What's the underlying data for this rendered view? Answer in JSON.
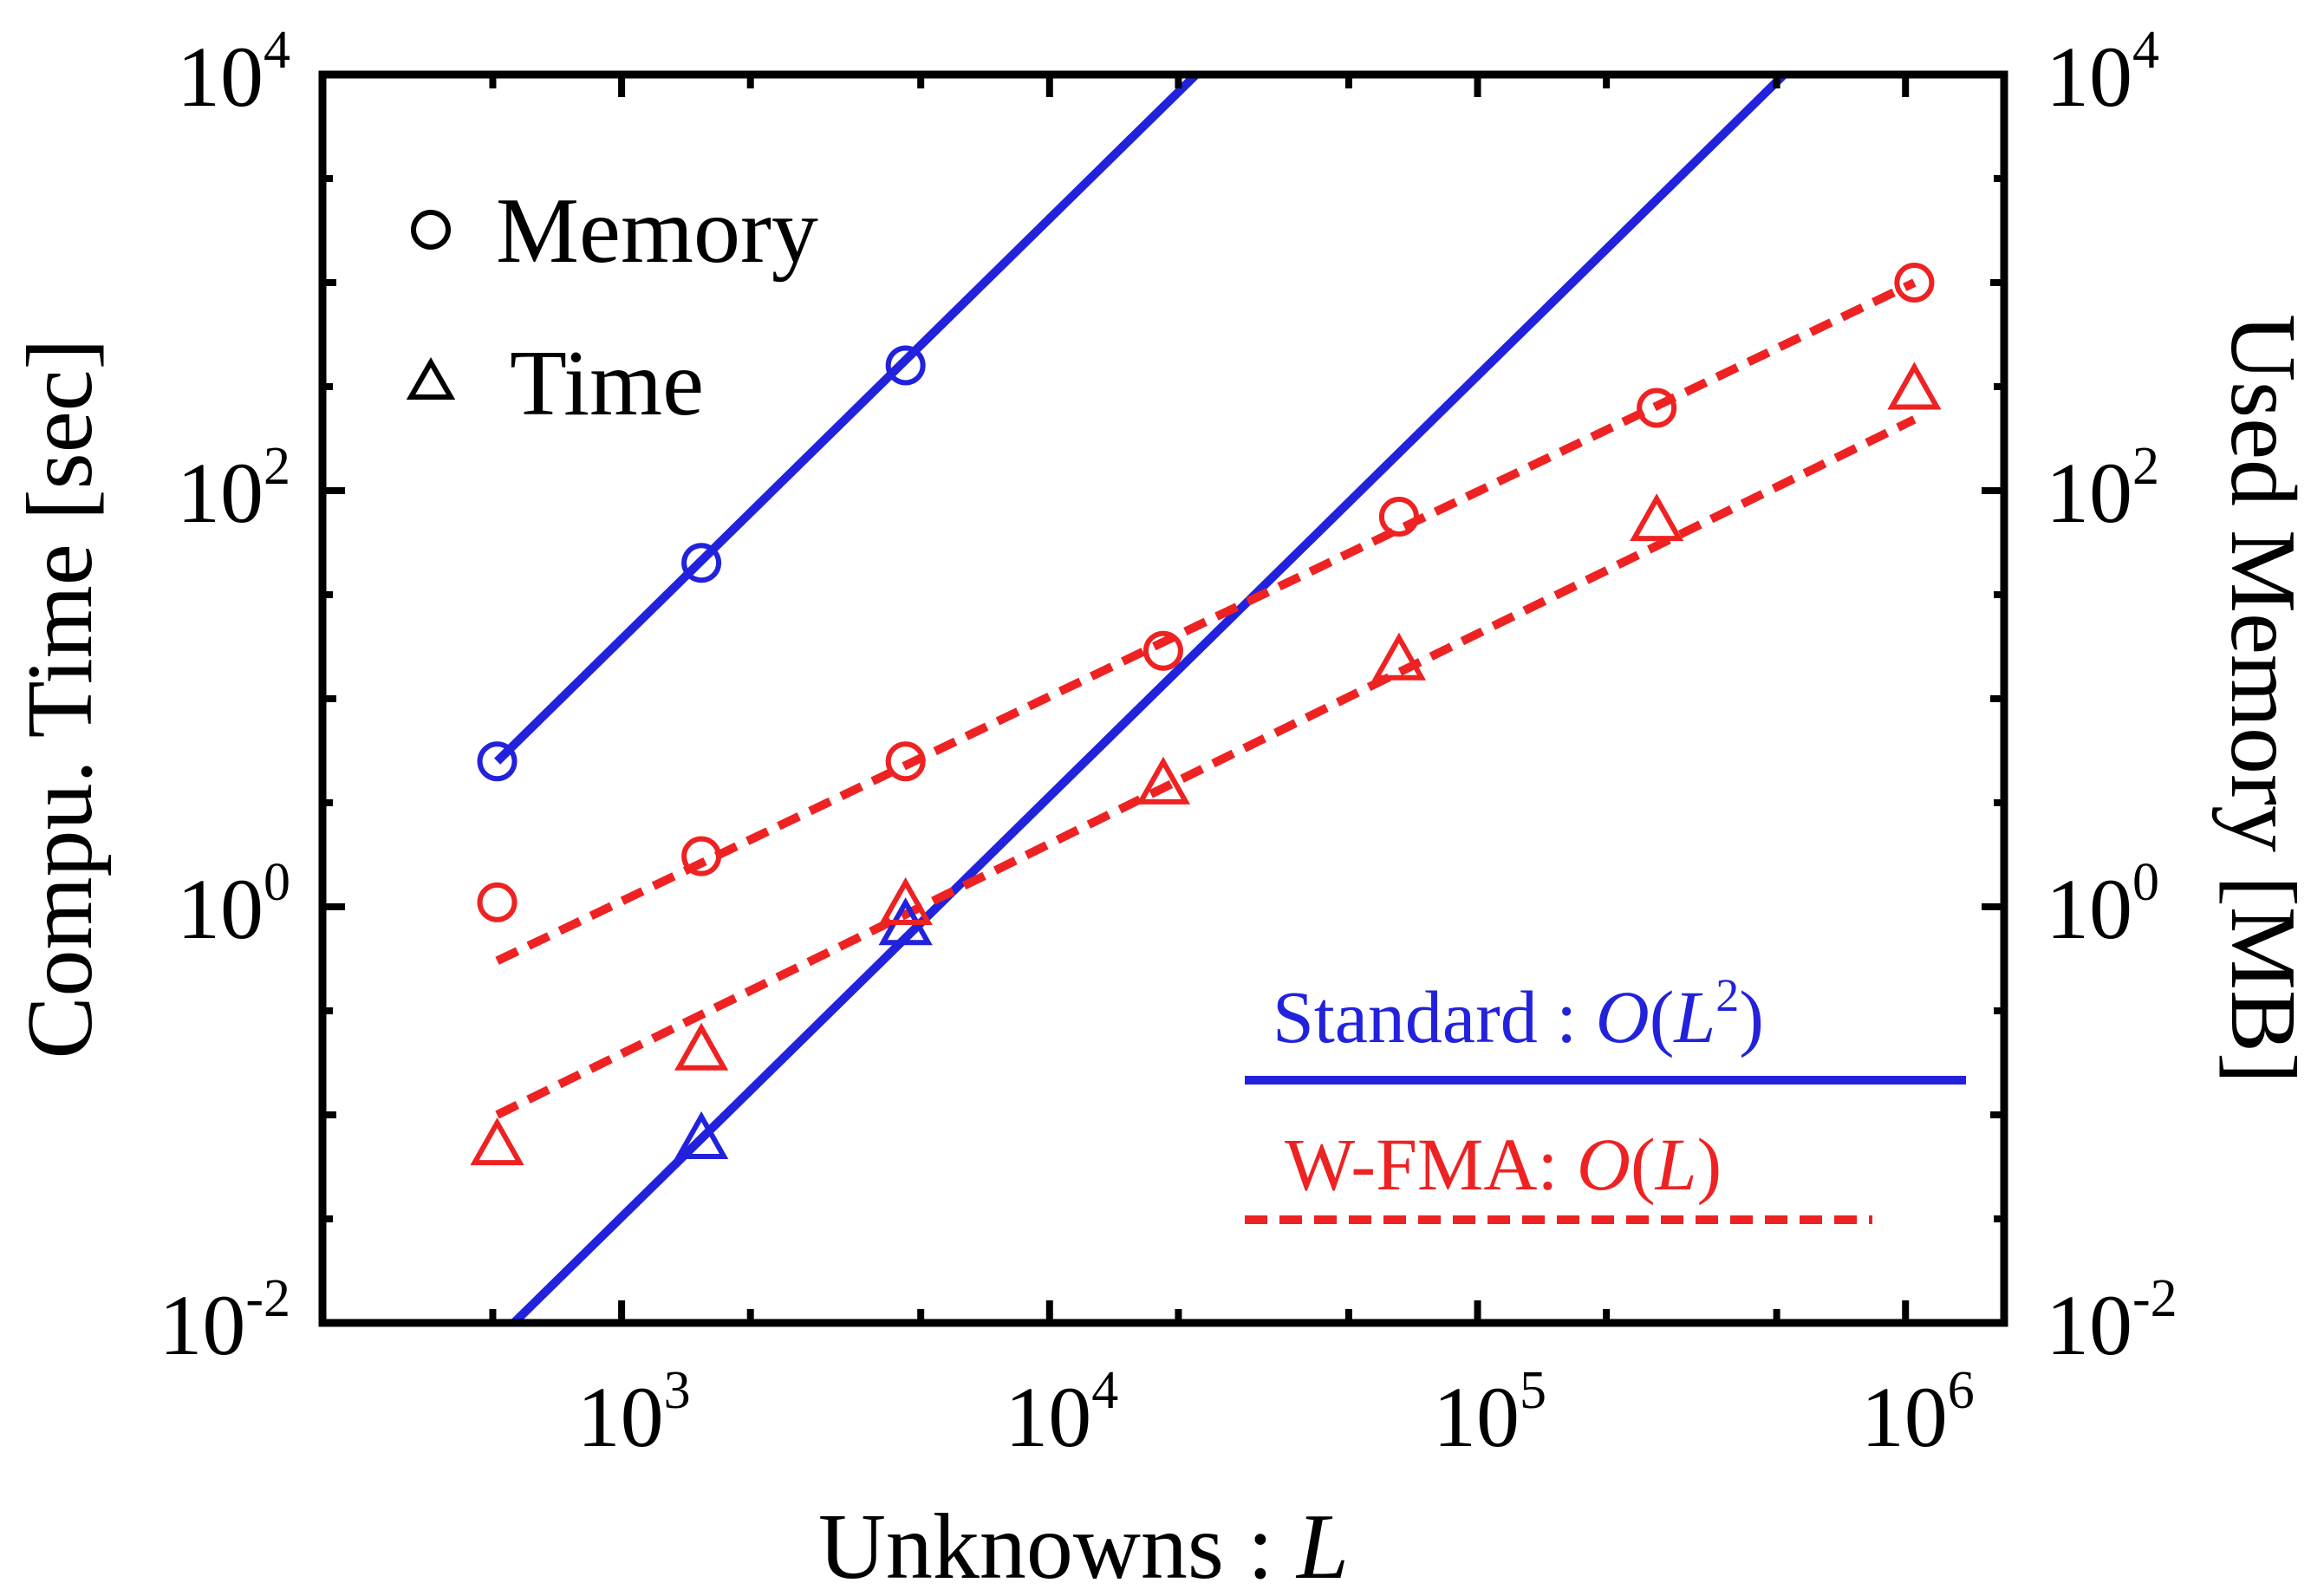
{
  "chart_data": {
    "type": "scatter",
    "xlabel": "Unknowns : ",
    "xlabel_var": "L",
    "ylabel_left": "Compu. Time [sec]",
    "ylabel_right": "Used Memory [MB]",
    "x_scale": "log",
    "y_scale": "log",
    "xlim": [
      200,
      1700000
    ],
    "ylim": [
      0.01,
      10000
    ],
    "y_ticks": [
      {
        "base": "10",
        "exp": "-2",
        "value": 0.01
      },
      {
        "base": "10",
        "exp": "0",
        "value": 1
      },
      {
        "base": "10",
        "exp": "2",
        "value": 100
      },
      {
        "base": "10",
        "exp": "4",
        "value": 10000
      }
    ],
    "x_ticks": [
      {
        "base": "10",
        "exp": "3",
        "value": 1000
      },
      {
        "base": "10",
        "exp": "4",
        "value": 10000
      },
      {
        "base": "10",
        "exp": "5",
        "value": 100000
      },
      {
        "base": "10",
        "exp": "6",
        "value": 1000000
      }
    ],
    "grid": false,
    "legend_markers": {
      "placement": "top-left",
      "items": [
        {
          "marker": "circle",
          "label": "Memory"
        },
        {
          "marker": "triangle",
          "label": "Time"
        }
      ]
    },
    "legend_methods": {
      "placement": "bottom-right",
      "standard": {
        "prefix": "Standard : ",
        "O": "O",
        "open": "(",
        "var": "L",
        "exp": "2",
        "close": ")",
        "color": "#2222dd",
        "linestyle": "solid"
      },
      "wfma": {
        "prefix": "W-FMA:  ",
        "O": "O",
        "open": "(",
        "var": "L",
        "close": ")",
        "color": "#ee2222",
        "linestyle": "dashed"
      }
    },
    "series": [
      {
        "name": "Standard Memory",
        "marker": "circle",
        "color": "#2222dd",
        "points": [
          [
            512,
            5
          ],
          [
            1536,
            45
          ],
          [
            4608,
            400
          ]
        ]
      },
      {
        "name": "Standard Time",
        "marker": "triangle",
        "color": "#2222dd",
        "points": [
          [
            1536,
            0.075
          ],
          [
            4608,
            0.8
          ]
        ]
      },
      {
        "name": "W-FMA Memory",
        "marker": "circle",
        "color": "#ee2222",
        "points": [
          [
            512,
            1.05
          ],
          [
            1536,
            1.75
          ],
          [
            4608,
            5
          ],
          [
            18432,
            17
          ],
          [
            65536,
            75
          ],
          [
            262144,
            250
          ],
          [
            1048576,
            1000
          ]
        ]
      },
      {
        "name": "W-FMA Time",
        "marker": "triangle",
        "color": "#ee2222",
        "points": [
          [
            512,
            0.07
          ],
          [
            1536,
            0.2
          ],
          [
            4608,
            1.0
          ],
          [
            18432,
            3.8
          ],
          [
            65536,
            15
          ],
          [
            262144,
            70
          ],
          [
            1048576,
            300
          ]
        ]
      }
    ],
    "fit_lines": [
      {
        "name": "Standard Memory fit",
        "color": "#2222dd",
        "style": "solid",
        "from": [
          512,
          5
        ],
        "to": [
          22000,
          10000
        ]
      },
      {
        "name": "Standard Time fit",
        "color": "#2222dd",
        "style": "solid",
        "from": [
          560,
          0.01
        ],
        "to": [
          520000,
          10000
        ]
      },
      {
        "name": "W-FMA Memory fit",
        "color": "#ee2222",
        "style": "dashed",
        "from": [
          512,
          0.55
        ],
        "to": [
          1048576,
          1000
        ]
      },
      {
        "name": "W-FMA Time fit",
        "color": "#ee2222",
        "style": "dashed",
        "from": [
          512,
          0.1
        ],
        "to": [
          1048576,
          220
        ]
      }
    ]
  }
}
